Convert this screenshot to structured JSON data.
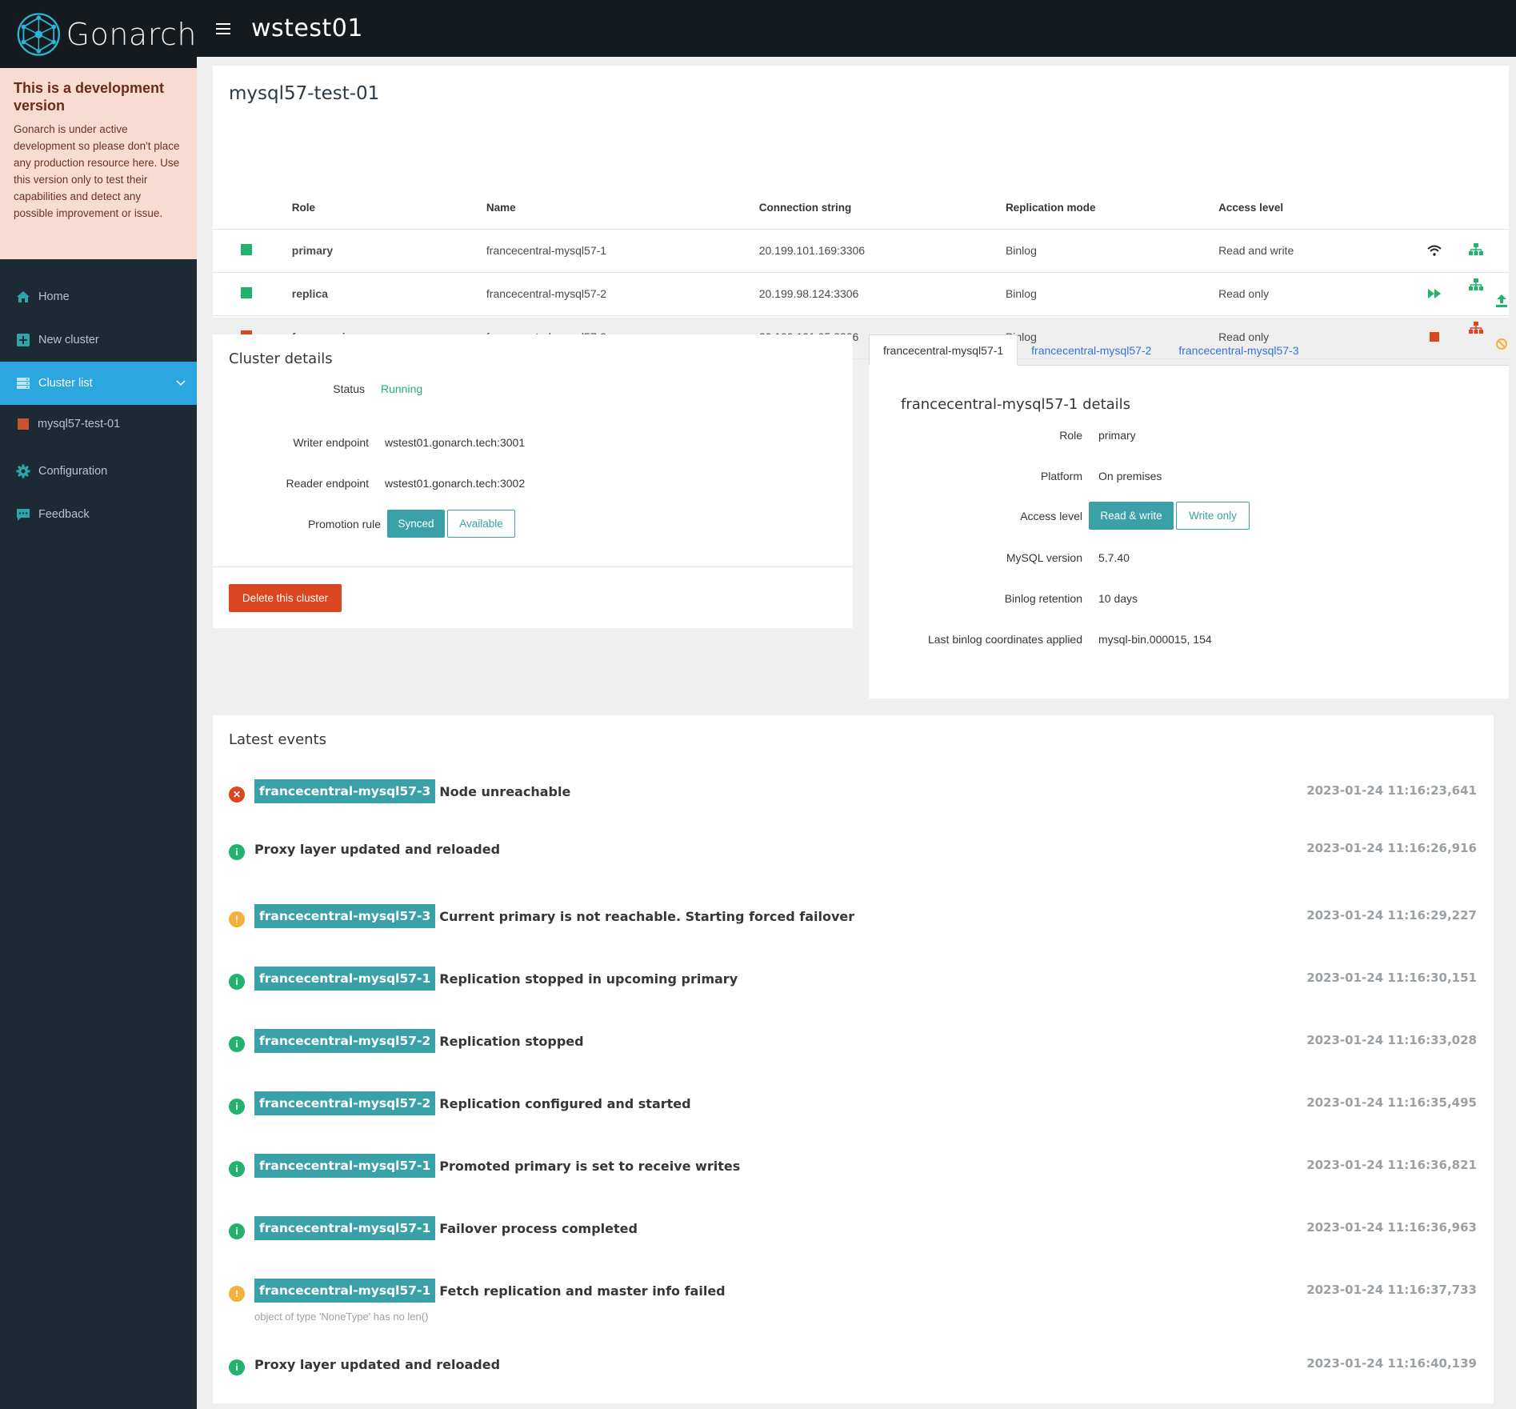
{
  "brand": {
    "name": "Gonarch"
  },
  "dev_notice": {
    "title": "This is a development version",
    "body": "Gonarch is under active development so please don't place any production resource here. Use this version only to test their capabilities and detect any possible improvement or issue."
  },
  "nav": {
    "home": "Home",
    "new_cluster": "New cluster",
    "cluster_list": "Cluster list",
    "cluster_item": "mysql57-test-01",
    "configuration": "Configuration",
    "feedback": "Feedback"
  },
  "topbar": {
    "title": "wstest01"
  },
  "nodes": {
    "title": "mysql57-test-01",
    "headers": {
      "role": "Role",
      "name": "Name",
      "conn": "Connection string",
      "mode": "Replication mode",
      "access": "Access level"
    },
    "rows": [
      {
        "role": "primary",
        "name": "francecentral-mysql57-1",
        "conn": "20.199.101.169:3306",
        "mode": "Binlog",
        "access": "Read and write",
        "color": "#23b26e"
      },
      {
        "role": "replica",
        "name": "francecentral-mysql57-2",
        "conn": "20.199.98.124:3306",
        "mode": "Binlog",
        "access": "Read only",
        "color": "#23b26e"
      },
      {
        "role": "former-primary",
        "name": "francecentral-mysql57-3",
        "conn": "20.199.101.95:3306",
        "mode": "Binlog",
        "access": "Read only",
        "color": "#d9461f"
      }
    ]
  },
  "cluster_details": {
    "title": "Cluster details",
    "status_label": "Status",
    "status_value": "Running",
    "writer_label": "Writer endpoint",
    "writer_value": "wstest01.gonarch.tech:3001",
    "reader_label": "Reader endpoint",
    "reader_value": "wstest01.gonarch.tech:3002",
    "promotion_label": "Promotion rule",
    "promotion_synced": "Synced",
    "promotion_available": "Available",
    "delete_label": "Delete this cluster"
  },
  "node_tabs": [
    "francecentral-mysql57-1",
    "francecentral-mysql57-2",
    "francecentral-mysql57-3"
  ],
  "node_details": {
    "title": "francecentral-mysql57-1 details",
    "role_label": "Role",
    "role_value": "primary",
    "platform_label": "Platform",
    "platform_value": "On premises",
    "access_label": "Access level",
    "access_rw": "Read & write",
    "access_wo": "Write only",
    "mysql_label": "MySQL version",
    "mysql_value": "5.7.40",
    "binlog_label": "Binlog retention",
    "binlog_value": "10 days",
    "coords_label": "Last binlog coordinates applied",
    "coords_value": "mysql-bin.000015, 154"
  },
  "events": {
    "title": "Latest events",
    "items": [
      {
        "type": "error",
        "tag": "francecentral-mysql57-3",
        "message": "Node unreachable",
        "time": "2023-01-24 11:16:23,641"
      },
      {
        "type": "info",
        "tag": "",
        "message": "Proxy layer updated and reloaded",
        "time": "2023-01-24 11:16:26,916"
      },
      {
        "type": "warning",
        "tag": "francecentral-mysql57-3",
        "message": "Current primary is not reachable. Starting forced failover",
        "time": "2023-01-24 11:16:29,227"
      },
      {
        "type": "info",
        "tag": "francecentral-mysql57-1",
        "message": "Replication stopped in upcoming primary",
        "time": "2023-01-24 11:16:30,151"
      },
      {
        "type": "info",
        "tag": "francecentral-mysql57-2",
        "message": "Replication stopped",
        "time": "2023-01-24 11:16:33,028"
      },
      {
        "type": "info",
        "tag": "francecentral-mysql57-2",
        "message": "Replication configured and started",
        "time": "2023-01-24 11:16:35,495"
      },
      {
        "type": "info",
        "tag": "francecentral-mysql57-1",
        "message": "Promoted primary is set to receive writes",
        "time": "2023-01-24 11:16:36,821"
      },
      {
        "type": "info",
        "tag": "francecentral-mysql57-1",
        "message": "Failover process completed",
        "time": "2023-01-24 11:16:36,963"
      },
      {
        "type": "warning",
        "tag": "francecentral-mysql57-1",
        "message": "Fetch replication and master info failed",
        "time": "2023-01-24 11:16:37,733",
        "detail": "object of type 'NoneType' has no len()"
      },
      {
        "type": "info",
        "tag": "",
        "message": "Proxy layer updated and reloaded",
        "time": "2023-01-24 11:16:40,139"
      }
    ]
  },
  "colors": {
    "teal": "#3aa1a8",
    "green": "#23b26e",
    "red": "#d9461f",
    "orange": "#f2b13a",
    "sidebar_active": "#2ba6de"
  }
}
